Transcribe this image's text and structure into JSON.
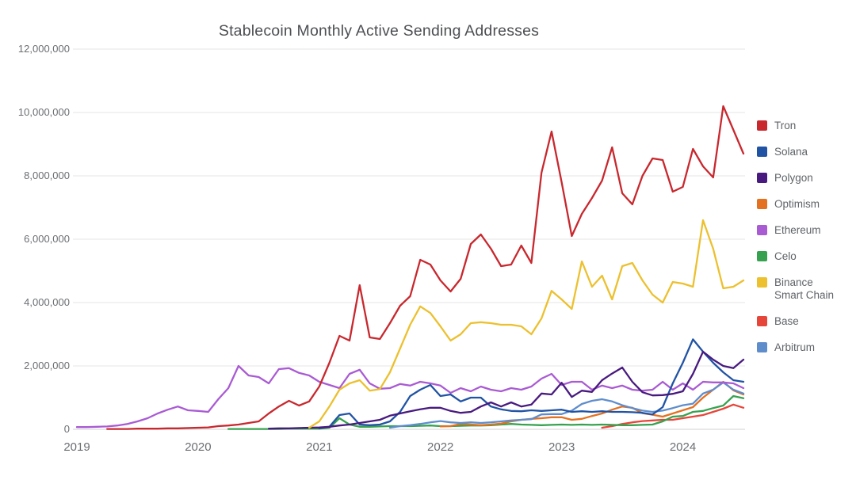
{
  "chart_data": {
    "type": "line",
    "title": "Stablecoin Monthly Active Sending Addresses",
    "xlabel": "",
    "ylabel": "",
    "x_range": [
      "2019-01",
      "2024-07"
    ],
    "x_frequency": "monthly",
    "x_tick_labels": [
      "2019",
      "2020",
      "2021",
      "2022",
      "2023",
      "2024"
    ],
    "y_tick_labels": [
      "0",
      "2,000,000",
      "4,000,000",
      "6,000,000",
      "8,000,000",
      "10,000,000",
      "12,000,000"
    ],
    "ylim": [
      0,
      12000000
    ],
    "values_unit": "millions_of_addresses",
    "grid": "horizontal",
    "legend_position": "right",
    "series": [
      {
        "name": "Tron",
        "color": "#c8282e",
        "values": [
          null,
          null,
          null,
          0.01,
          0.01,
          0.01,
          0.02,
          0.02,
          0.02,
          0.03,
          0.03,
          0.04,
          0.05,
          0.06,
          0.1,
          0.12,
          0.15,
          0.2,
          0.25,
          0.5,
          0.72,
          0.9,
          0.75,
          0.88,
          1.35,
          2.1,
          2.95,
          2.8,
          4.55,
          2.9,
          2.85,
          3.35,
          3.9,
          4.2,
          5.35,
          5.2,
          4.7,
          4.35,
          4.75,
          5.85,
          6.15,
          5.7,
          5.15,
          5.2,
          5.8,
          5.25,
          8.1,
          9.4,
          7.8,
          6.1,
          6.8,
          7.3,
          7.85,
          8.9,
          7.45,
          7.1,
          8.0,
          8.55,
          8.5,
          7.5,
          7.65,
          8.85,
          8.3,
          7.95,
          10.2,
          9.45,
          8.7
        ]
      },
      {
        "name": "Solana",
        "color": "#2153a4",
        "values": [
          null,
          null,
          null,
          null,
          null,
          null,
          null,
          null,
          null,
          null,
          null,
          null,
          null,
          null,
          null,
          null,
          null,
          null,
          null,
          null,
          null,
          null,
          null,
          null,
          0.03,
          0.08,
          0.45,
          0.5,
          0.15,
          0.13,
          0.15,
          0.25,
          0.55,
          1.05,
          1.25,
          1.4,
          1.05,
          1.1,
          0.88,
          1.0,
          1.0,
          0.72,
          0.63,
          0.58,
          0.57,
          0.6,
          0.58,
          0.6,
          0.62,
          0.55,
          0.57,
          0.55,
          0.57,
          0.55,
          0.55,
          0.54,
          0.52,
          0.47,
          0.7,
          1.45,
          2.1,
          2.84,
          2.45,
          2.1,
          1.8,
          1.55,
          1.5
        ]
      },
      {
        "name": "Polygon",
        "color": "#481a7f",
        "values": [
          null,
          null,
          null,
          null,
          null,
          null,
          null,
          null,
          null,
          null,
          null,
          null,
          null,
          null,
          null,
          null,
          null,
          null,
          null,
          0.02,
          0.03,
          0.03,
          0.04,
          0.05,
          0.06,
          0.08,
          0.12,
          0.15,
          0.2,
          0.25,
          0.3,
          0.43,
          0.5,
          0.57,
          0.63,
          0.68,
          0.68,
          0.58,
          0.52,
          0.55,
          0.72,
          0.85,
          0.72,
          0.85,
          0.72,
          0.78,
          1.13,
          1.1,
          1.47,
          1.02,
          1.22,
          1.18,
          1.55,
          1.76,
          1.95,
          1.5,
          1.17,
          1.07,
          1.08,
          1.12,
          1.2,
          1.75,
          2.45,
          2.2,
          2.0,
          1.93,
          2.2
        ]
      },
      {
        "name": "Optimism",
        "color": "#e4711f",
        "values": [
          null,
          null,
          null,
          null,
          null,
          null,
          null,
          null,
          null,
          null,
          null,
          null,
          null,
          null,
          null,
          null,
          null,
          null,
          null,
          null,
          null,
          null,
          null,
          null,
          null,
          null,
          null,
          null,
          null,
          null,
          null,
          null,
          null,
          null,
          null,
          null,
          0.09,
          0.1,
          0.17,
          0.15,
          0.13,
          0.15,
          0.18,
          0.25,
          0.3,
          0.33,
          0.35,
          0.38,
          0.38,
          0.3,
          0.33,
          0.42,
          0.5,
          0.62,
          0.72,
          0.68,
          0.51,
          0.46,
          0.4,
          0.5,
          0.6,
          0.7,
          1.0,
          1.25,
          1.5,
          1.23,
          1.1
        ]
      },
      {
        "name": "Ethereum",
        "color": "#a95bd3",
        "values": [
          0.07,
          0.07,
          0.08,
          0.09,
          0.12,
          0.17,
          0.25,
          0.35,
          0.5,
          0.62,
          0.72,
          0.6,
          0.58,
          0.55,
          0.95,
          1.3,
          2.0,
          1.7,
          1.65,
          1.45,
          1.9,
          1.93,
          1.78,
          1.7,
          1.5,
          1.4,
          1.3,
          1.75,
          1.88,
          1.45,
          1.28,
          1.3,
          1.43,
          1.38,
          1.5,
          1.45,
          1.38,
          1.15,
          1.3,
          1.2,
          1.35,
          1.25,
          1.2,
          1.3,
          1.25,
          1.35,
          1.6,
          1.75,
          1.4,
          1.5,
          1.5,
          1.25,
          1.38,
          1.3,
          1.38,
          1.25,
          1.22,
          1.25,
          1.5,
          1.25,
          1.45,
          1.25,
          1.5,
          1.48,
          1.48,
          1.45,
          1.3
        ]
      },
      {
        "name": "Celo",
        "color": "#36a24f",
        "values": [
          null,
          null,
          null,
          null,
          null,
          null,
          null,
          null,
          null,
          null,
          null,
          null,
          null,
          null,
          null,
          0.01,
          0.01,
          0.01,
          0.01,
          0.01,
          0.01,
          0.02,
          0.02,
          0.02,
          0.02,
          0.05,
          0.35,
          0.15,
          0.08,
          0.08,
          0.09,
          0.1,
          0.1,
          0.1,
          0.11,
          0.12,
          0.1,
          0.1,
          0.11,
          0.12,
          0.12,
          0.13,
          0.15,
          0.17,
          0.15,
          0.14,
          0.13,
          0.14,
          0.15,
          0.14,
          0.15,
          0.14,
          0.15,
          0.14,
          0.13,
          0.13,
          0.14,
          0.15,
          0.25,
          0.4,
          0.42,
          0.55,
          0.58,
          0.67,
          0.75,
          1.05,
          0.98
        ]
      },
      {
        "name": "Binance Smart Chain",
        "color": "#ecc02e",
        "values": [
          null,
          null,
          null,
          null,
          null,
          null,
          null,
          null,
          null,
          null,
          null,
          null,
          null,
          null,
          null,
          null,
          null,
          null,
          null,
          null,
          null,
          null,
          null,
          0.05,
          0.25,
          0.72,
          1.25,
          1.45,
          1.55,
          1.22,
          1.27,
          1.8,
          2.55,
          3.3,
          3.88,
          3.67,
          3.25,
          2.8,
          3.0,
          3.35,
          3.38,
          3.35,
          3.3,
          3.3,
          3.25,
          3.0,
          3.5,
          4.37,
          4.1,
          3.8,
          5.3,
          4.5,
          4.85,
          4.1,
          5.15,
          5.25,
          4.7,
          4.25,
          4.0,
          4.65,
          4.6,
          4.5,
          6.6,
          5.7,
          4.45,
          4.5,
          4.7
        ]
      },
      {
        "name": "Base",
        "color": "#e6463a",
        "values": [
          null,
          null,
          null,
          null,
          null,
          null,
          null,
          null,
          null,
          null,
          null,
          null,
          null,
          null,
          null,
          null,
          null,
          null,
          null,
          null,
          null,
          null,
          null,
          null,
          null,
          null,
          null,
          null,
          null,
          null,
          null,
          null,
          null,
          null,
          null,
          null,
          null,
          null,
          null,
          null,
          null,
          null,
          null,
          null,
          null,
          null,
          null,
          null,
          null,
          null,
          null,
          null,
          0.05,
          0.1,
          0.17,
          0.22,
          0.26,
          0.28,
          0.3,
          0.3,
          0.35,
          0.4,
          0.45,
          0.55,
          0.65,
          0.78,
          0.68
        ]
      },
      {
        "name": "Arbitrum",
        "color": "#5f8dcc",
        "values": [
          null,
          null,
          null,
          null,
          null,
          null,
          null,
          null,
          null,
          null,
          null,
          null,
          null,
          null,
          null,
          null,
          null,
          null,
          null,
          null,
          null,
          null,
          null,
          null,
          null,
          null,
          null,
          null,
          null,
          null,
          null,
          0.05,
          0.1,
          0.13,
          0.17,
          0.22,
          0.26,
          0.22,
          0.2,
          0.22,
          0.2,
          0.22,
          0.25,
          0.28,
          0.3,
          0.32,
          0.47,
          0.48,
          0.48,
          0.59,
          0.8,
          0.9,
          0.95,
          0.88,
          0.76,
          0.67,
          0.59,
          0.55,
          0.59,
          0.67,
          0.76,
          0.81,
          1.13,
          1.25,
          1.48,
          1.25,
          1.13
        ]
      }
    ],
    "draw_order": [
      "Base",
      "Celo",
      "Optimism",
      "Arbitrum",
      "Ethereum",
      "Solana",
      "Polygon",
      "Binance Smart Chain",
      "Tron"
    ]
  }
}
